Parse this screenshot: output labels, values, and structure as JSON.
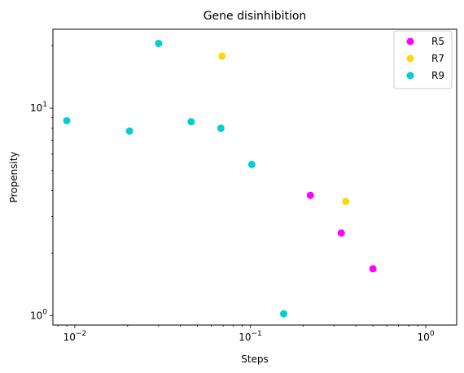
{
  "chart_data": {
    "type": "scatter",
    "title": "Gene disinhibition",
    "xlabel": "Steps",
    "ylabel": "Propensity",
    "xscale": "log",
    "yscale": "log",
    "xlim": [
      0.0075,
      1.5
    ],
    "ylim": [
      0.9,
      24
    ],
    "x_ticks": [
      {
        "value": 0.01,
        "base": "10",
        "exp": "−2"
      },
      {
        "value": 0.1,
        "base": "10",
        "exp": "−1"
      },
      {
        "value": 1,
        "base": "10",
        "exp": "0"
      }
    ],
    "y_ticks": [
      {
        "value": 1,
        "base": "10",
        "exp": "0"
      },
      {
        "value": 10,
        "base": "10",
        "exp": "1"
      }
    ],
    "legend_position": "top-right",
    "series": [
      {
        "name": "R5",
        "color": "#ff00ff",
        "points": [
          [
            0.22,
            3.8
          ],
          [
            0.33,
            2.5
          ],
          [
            0.5,
            1.68
          ]
        ]
      },
      {
        "name": "R7",
        "color": "#ffd700",
        "points": [
          [
            0.069,
            17.8
          ],
          [
            0.35,
            3.55
          ]
        ]
      },
      {
        "name": "R9",
        "color": "#00ced1",
        "points": [
          [
            0.009,
            8.7
          ],
          [
            0.0205,
            7.75
          ],
          [
            0.03,
            20.5
          ],
          [
            0.046,
            8.6
          ],
          [
            0.068,
            8.0
          ],
          [
            0.102,
            5.35
          ],
          [
            0.155,
            1.02
          ]
        ]
      }
    ]
  }
}
